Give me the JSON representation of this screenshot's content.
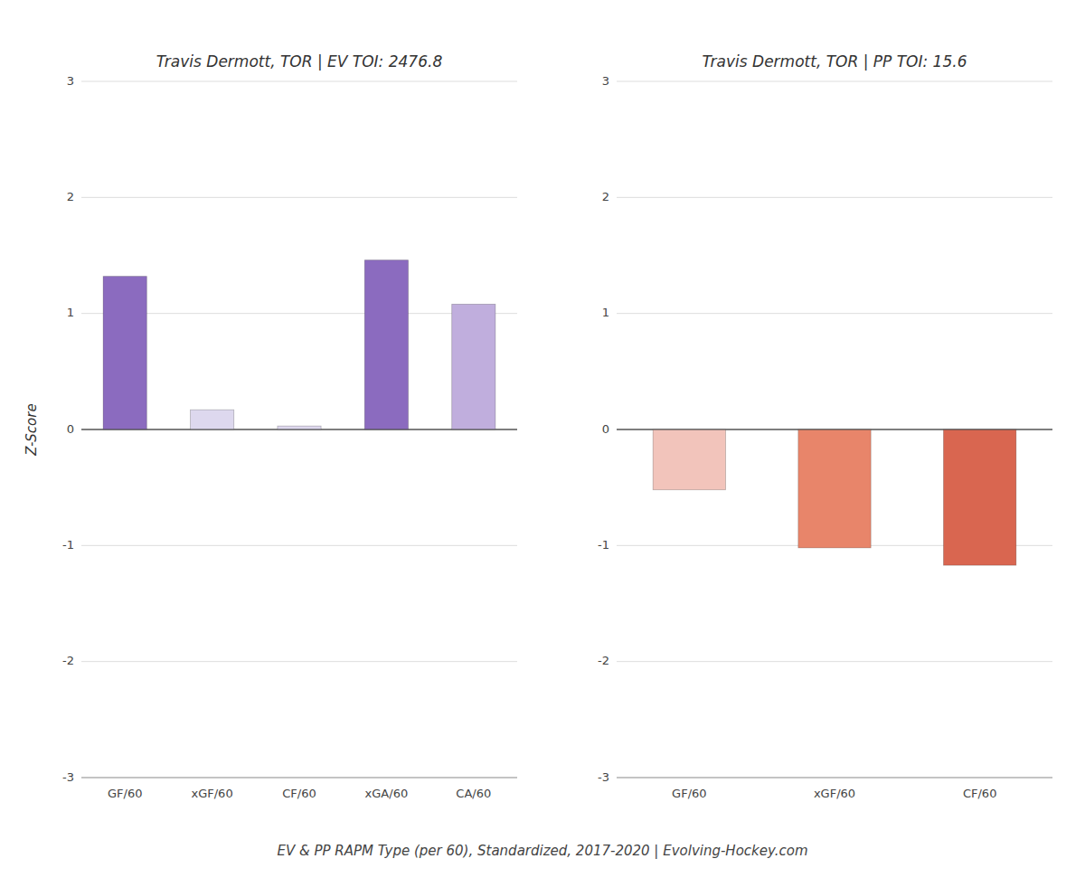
{
  "chart_data": [
    {
      "type": "bar",
      "title": "Travis Dermott, TOR  |  EV TOI: 2476.8",
      "categories": [
        "GF/60",
        "xGF/60",
        "CF/60",
        "xGA/60",
        "CA/60"
      ],
      "values": [
        1.32,
        0.17,
        0.03,
        1.46,
        1.08
      ],
      "colors": [
        "#8b6bbf",
        "#ddd8ee",
        "#ddd8ee",
        "#8b6bbf",
        "#c0aedd"
      ],
      "ylabel": "Z-Score",
      "ylim": [
        -3,
        3
      ],
      "yticks": [
        -3,
        -2,
        -1,
        0,
        1,
        2,
        3
      ],
      "grid": true
    },
    {
      "type": "bar",
      "title": "Travis Dermott, TOR  |  PP TOI: 15.6",
      "categories": [
        "GF/60",
        "xGF/60",
        "CF/60"
      ],
      "values": [
        -0.52,
        -1.02,
        -1.17
      ],
      "colors": [
        "#f2c4bb",
        "#e8856a",
        "#d96650"
      ],
      "ylim": [
        -3,
        3
      ],
      "yticks": [
        -3,
        -2,
        -1,
        0,
        1,
        2,
        3
      ],
      "grid": true
    }
  ],
  "footer": "EV & PP RAPM Type (per 60), Standardized, 2017-2020   |   Evolving-Hockey.com"
}
